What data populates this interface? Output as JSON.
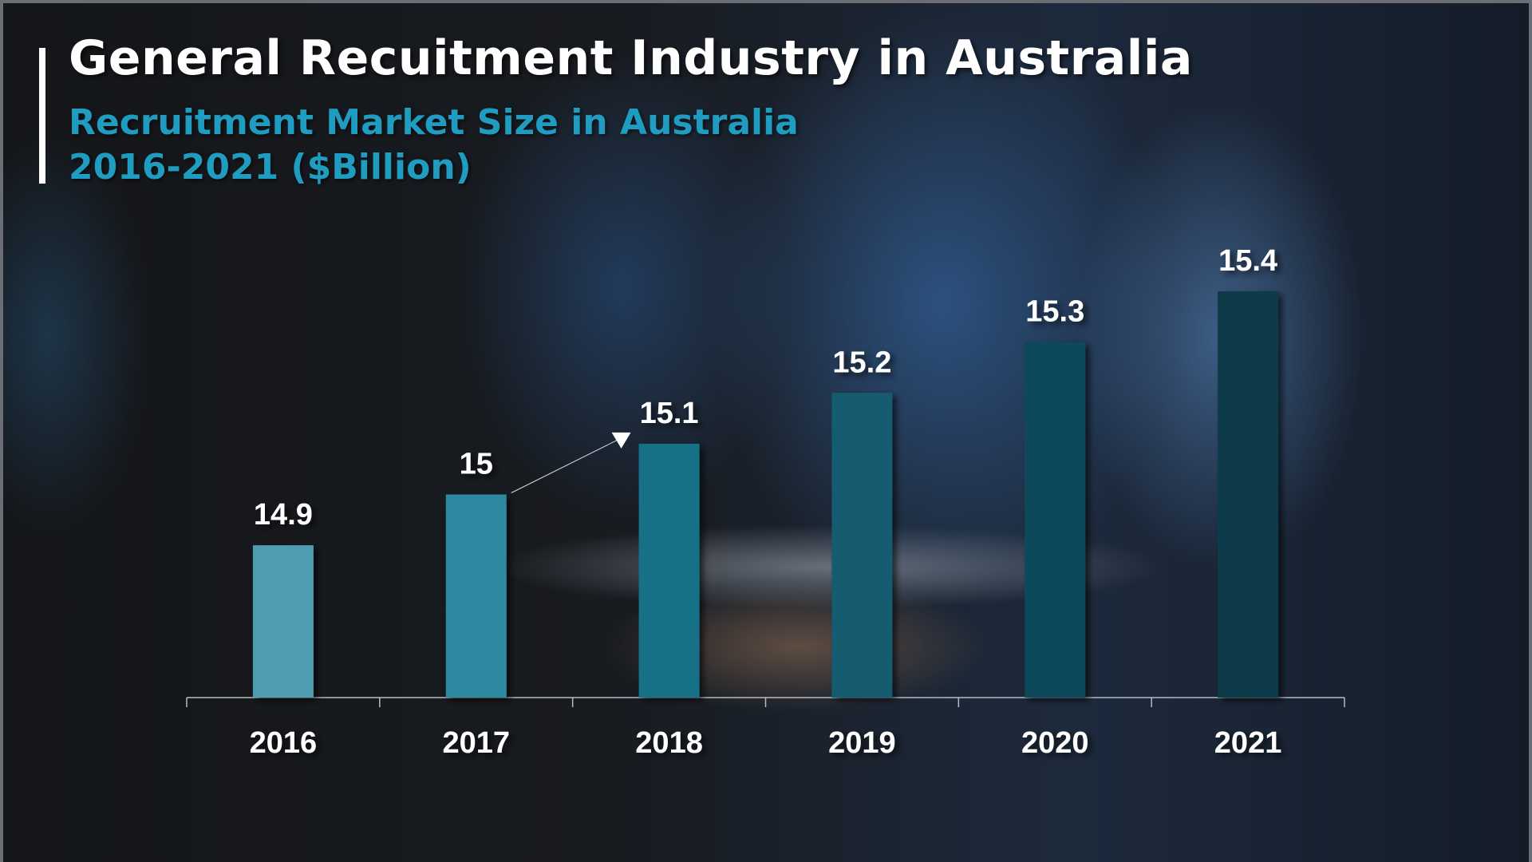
{
  "title": "General Recuitment Industry in Australia",
  "subtitle_line1": "Recruitment Market Size in Australia",
  "subtitle_line2": "2016-2021 ($Billion)",
  "colors": {
    "title": "#ffffff",
    "subtitle": "#1f9cc0",
    "bar_light": "#4e9cb2",
    "bar_dark": "#0c3b48"
  },
  "chart_data": {
    "type": "bar",
    "categories": [
      "2016",
      "2017",
      "2018",
      "2019",
      "2020",
      "2021"
    ],
    "values": [
      14.9,
      15,
      15.1,
      15.2,
      15.3,
      15.4
    ],
    "data_labels": [
      "14.9",
      "15",
      "15.1",
      "15.2",
      "15.3",
      "15.4"
    ],
    "title": "Recruitment Market Size in Australia 2016-2021 ($Billion)",
    "xlabel": "",
    "ylabel": "",
    "ylim": [
      14.6,
      15.4
    ],
    "grid": false,
    "y_axis_visible": false,
    "bar_colors": [
      "#4e9cb2",
      "#2f88a0",
      "#176f86",
      "#125c70",
      "#0e4a5a",
      "#0c3b48"
    ],
    "annotations": [
      {
        "type": "arrow",
        "from": "2017",
        "to": "2018"
      }
    ]
  }
}
